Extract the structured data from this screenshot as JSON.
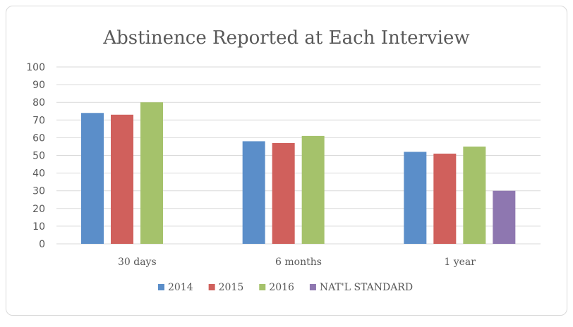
{
  "chart_data": {
    "type": "bar",
    "title": "Abstinence Reported at Each Interview",
    "categories": [
      "30 days",
      "6 months",
      "1 year"
    ],
    "ylim": [
      0,
      100
    ],
    "yticks": [
      "0",
      "10",
      "20",
      "30",
      "40",
      "50",
      "60",
      "70",
      "80",
      "90",
      "100"
    ],
    "grid": true,
    "legend_position": "bottom",
    "series": [
      {
        "name": "2014",
        "color": "#5b8ec9",
        "values": [
          74,
          58,
          52
        ]
      },
      {
        "name": "2015",
        "color": "#d0605c",
        "values": [
          73,
          57,
          51
        ]
      },
      {
        "name": "2016",
        "color": "#a5c26b",
        "values": [
          80,
          61,
          55
        ]
      },
      {
        "name": "NAT'L STANDARD",
        "color": "#8e77b0",
        "values": [
          null,
          null,
          30
        ]
      }
    ]
  }
}
